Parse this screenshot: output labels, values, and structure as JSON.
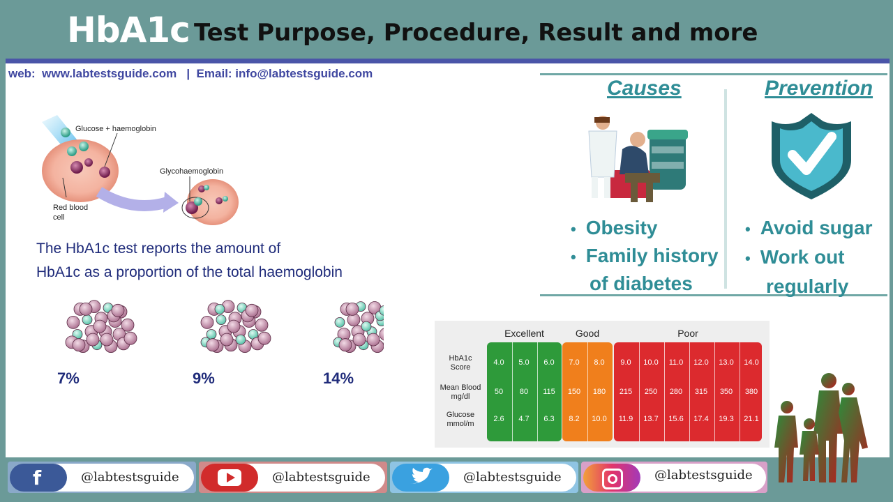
{
  "header": {
    "title_main": "HbA1c",
    "title_rest": "Test Purpose, Procedure, Result and more"
  },
  "contact": {
    "line": "web:  www.labtestsguide.com   |  Email: info@labtestsguide.com"
  },
  "diagram": {
    "label_glucose": "Glucose + haemoglobin",
    "label_glyco": "Glycohaemoglobin",
    "label_rbc_1": "Red blood",
    "label_rbc_2": "cell"
  },
  "description": {
    "line1": "The HbA1c test reports the amount of",
    "line2": "HbA1c as a proportion of the total haemoglobin"
  },
  "percentages": [
    "7%",
    "9%",
    "14%"
  ],
  "causes": {
    "heading": "Causes",
    "items": [
      "Obesity",
      "Family history",
      "of diabetes"
    ]
  },
  "prevention": {
    "heading": "Prevention",
    "items": [
      "Avoid sugar",
      "Work out",
      "regularly"
    ]
  },
  "table": {
    "groups": [
      "Excellent",
      "Good",
      "Poor"
    ],
    "row_labels": [
      [
        "HbA1c",
        "Score"
      ],
      [
        "Mean Blood",
        "mg/dl"
      ],
      [
        "Glucose",
        "mmol/m"
      ]
    ],
    "hba1c": [
      "4.0",
      "5.0",
      "6.0",
      "7.0",
      "8.0",
      "9.0",
      "10.0",
      "11.0",
      "12.0",
      "13.0",
      "14.0"
    ],
    "mean_blood": [
      "50",
      "80",
      "115",
      "150",
      "180",
      "215",
      "250",
      "280",
      "315",
      "350",
      "380"
    ],
    "glucose": [
      "2.6",
      "4.7",
      "6.3",
      "8.2",
      "10.0",
      "11.9",
      "13.7",
      "15.6",
      "17.4",
      "19.3",
      "21.1"
    ],
    "colors": {
      "excellent": "#2e9a3a",
      "good": "#f07f1c",
      "poor": "#dc2a2e"
    }
  },
  "social": {
    "facebook": "@labtestsguide",
    "youtube": "@labtestsguide",
    "twitter": "@labtestsguide",
    "instagram": "@labtestsguide"
  },
  "icons": [
    "facebook-icon",
    "youtube-icon",
    "twitter-icon",
    "instagram-icon",
    "shield-check-icon",
    "doctor-patient-icon",
    "family-silhouette-icon"
  ]
}
